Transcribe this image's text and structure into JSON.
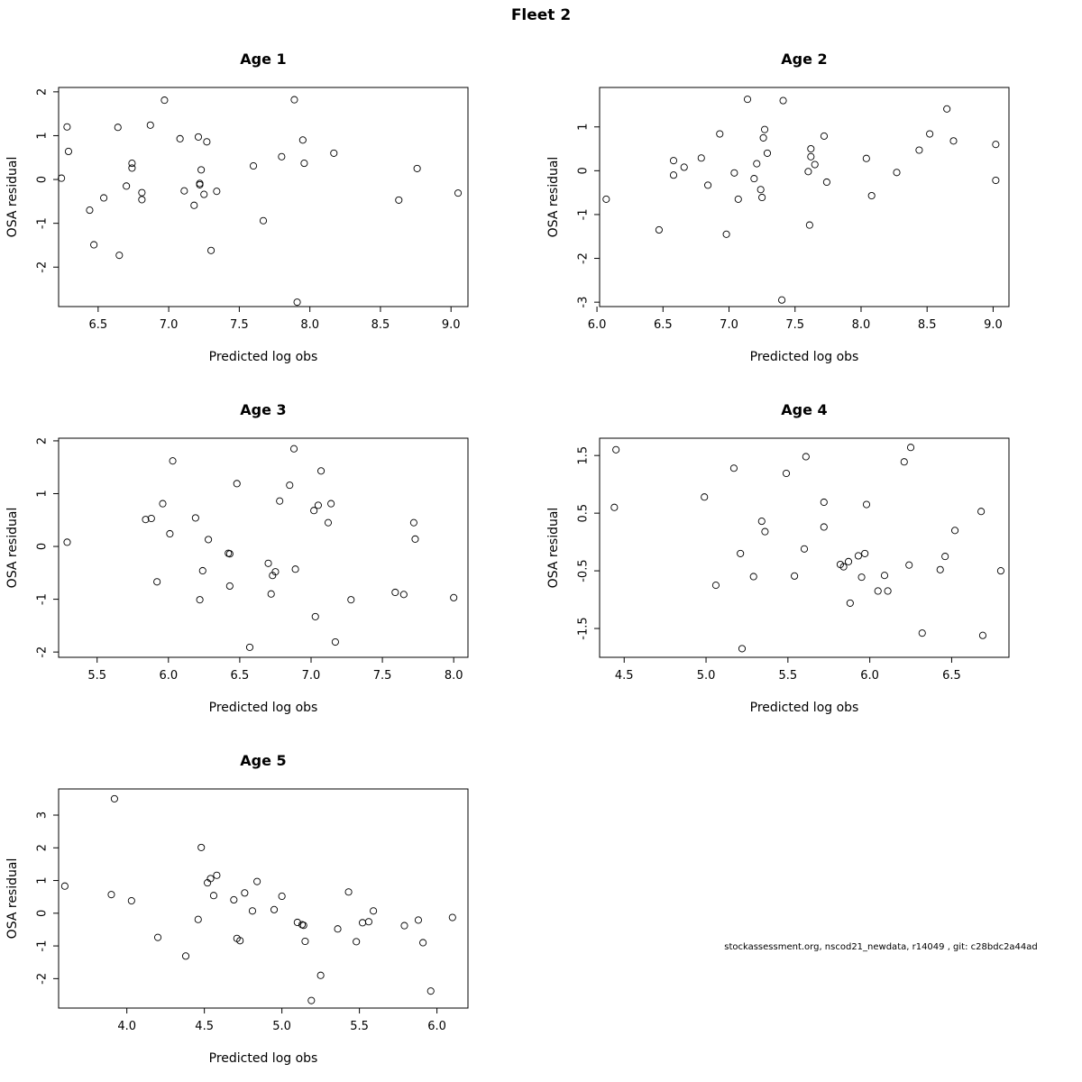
{
  "figure": {
    "title": "Fleet 2",
    "footer": "stockassessment.org, nscod21_newdata, r14049 , git: c28bdc2a44ad"
  },
  "chart_data": [
    {
      "type": "scatter",
      "title": "Age 1",
      "xlabel": "Predicted log obs",
      "ylabel": "OSA residual",
      "xlim": [
        6.22,
        9.12
      ],
      "ylim": [
        -2.9,
        2.1
      ],
      "xticks": [
        6.5,
        7.0,
        7.5,
        8.0,
        8.5,
        9.0
      ],
      "yticks": [
        -2,
        -1,
        0,
        1,
        2
      ],
      "x": [
        6.24,
        6.28,
        6.29,
        6.44,
        6.47,
        6.54,
        6.64,
        6.65,
        6.7,
        6.74,
        6.74,
        6.81,
        6.81,
        6.87,
        6.97,
        7.08,
        7.11,
        7.18,
        7.21,
        7.22,
        7.22,
        7.23,
        7.25,
        7.27,
        7.3,
        7.34,
        7.6,
        7.67,
        7.8,
        7.89,
        7.91,
        7.95,
        7.96,
        8.17,
        8.63,
        8.76,
        9.05
      ],
      "y": [
        0.03,
        1.2,
        0.64,
        -0.7,
        -1.49,
        -0.42,
        1.19,
        -1.73,
        -0.15,
        0.37,
        0.26,
        -0.3,
        -0.46,
        1.24,
        1.81,
        0.93,
        -0.26,
        -0.59,
        0.97,
        -0.09,
        -0.12,
        0.22,
        -0.34,
        0.86,
        -1.62,
        -0.27,
        0.31,
        -0.94,
        0.52,
        1.82,
        -2.8,
        0.9,
        0.37,
        0.6,
        -0.47,
        0.25,
        -0.31
      ]
    },
    {
      "type": "scatter",
      "title": "Age 2",
      "xlabel": "Predicted log obs",
      "ylabel": "OSA residual",
      "xlim": [
        6.02,
        9.12
      ],
      "ylim": [
        -3.1,
        1.9
      ],
      "xticks": [
        6.0,
        6.5,
        7.0,
        7.5,
        8.0,
        8.5,
        9.0
      ],
      "yticks": [
        -3,
        -2,
        -1,
        0,
        1
      ],
      "x": [
        6.07,
        6.47,
        6.58,
        6.58,
        6.66,
        6.79,
        6.84,
        6.93,
        6.98,
        7.04,
        7.07,
        7.14,
        7.19,
        7.21,
        7.24,
        7.25,
        7.26,
        7.27,
        7.29,
        7.4,
        7.41,
        7.6,
        7.61,
        7.62,
        7.62,
        7.65,
        7.72,
        7.74,
        8.04,
        8.08,
        8.27,
        8.44,
        8.52,
        8.65,
        8.7,
        9.02,
        9.02
      ],
      "y": [
        -0.65,
        -1.35,
        0.23,
        -0.1,
        0.08,
        0.29,
        -0.33,
        0.84,
        -1.45,
        -0.05,
        -0.65,
        1.63,
        -0.18,
        0.16,
        -0.43,
        -0.61,
        0.75,
        0.94,
        0.4,
        -2.95,
        1.6,
        -0.02,
        -1.24,
        0.5,
        0.32,
        0.14,
        0.79,
        -0.26,
        0.28,
        -0.57,
        -0.04,
        0.47,
        0.84,
        1.41,
        0.68,
        0.6,
        -0.22
      ]
    },
    {
      "type": "scatter",
      "title": "Age 3",
      "xlabel": "Predicted log obs",
      "ylabel": "OSA residual",
      "xlim": [
        5.23,
        8.1
      ],
      "ylim": [
        -2.1,
        2.05
      ],
      "xticks": [
        5.5,
        6.0,
        6.5,
        7.0,
        7.5,
        8.0
      ],
      "yticks": [
        -2,
        -1,
        0,
        1,
        2
      ],
      "x": [
        5.29,
        5.84,
        5.88,
        5.92,
        5.96,
        6.01,
        6.03,
        6.19,
        6.22,
        6.24,
        6.28,
        6.42,
        6.43,
        6.43,
        6.48,
        6.57,
        6.7,
        6.72,
        6.73,
        6.75,
        6.78,
        6.85,
        6.88,
        6.89,
        7.02,
        7.03,
        7.05,
        7.07,
        7.12,
        7.14,
        7.17,
        7.28,
        7.59,
        7.65,
        7.72,
        7.73,
        8.0
      ],
      "y": [
        0.08,
        0.51,
        0.53,
        -0.67,
        0.81,
        0.24,
        1.62,
        0.54,
        -1.01,
        -0.46,
        0.13,
        -0.13,
        -0.14,
        -0.75,
        1.19,
        -1.91,
        -0.32,
        -0.9,
        -0.55,
        -0.48,
        0.86,
        1.16,
        1.85,
        -0.43,
        0.68,
        -1.33,
        0.78,
        1.43,
        0.45,
        0.81,
        -1.81,
        -1.01,
        -0.87,
        -0.91,
        0.45,
        0.14,
        -0.97
      ]
    },
    {
      "type": "scatter",
      "title": "Age 4",
      "xlabel": "Predicted log obs",
      "ylabel": "OSA residual",
      "xlim": [
        4.35,
        6.85
      ],
      "ylim": [
        -2.0,
        1.8
      ],
      "xticks": [
        4.5,
        5.0,
        5.5,
        6.0,
        6.5
      ],
      "yticks": [
        -1.5,
        -0.5,
        0.5,
        1.5
      ],
      "x": [
        4.44,
        4.45,
        4.99,
        5.06,
        5.17,
        5.21,
        5.22,
        5.29,
        5.34,
        5.36,
        5.49,
        5.54,
        5.6,
        5.61,
        5.72,
        5.72,
        5.82,
        5.84,
        5.87,
        5.88,
        5.93,
        5.95,
        5.97,
        5.98,
        6.05,
        6.09,
        6.11,
        6.21,
        6.24,
        6.25,
        6.32,
        6.43,
        6.46,
        6.52,
        6.68,
        6.69,
        6.8
      ],
      "y": [
        0.6,
        1.6,
        0.78,
        -0.75,
        1.28,
        -0.2,
        -1.85,
        -0.6,
        0.36,
        0.18,
        1.19,
        -0.59,
        -0.12,
        1.48,
        0.69,
        0.26,
        -0.39,
        -0.43,
        -0.34,
        -1.06,
        -0.24,
        -0.61,
        -0.2,
        0.65,
        -0.85,
        -0.58,
        -0.85,
        1.39,
        -0.4,
        1.64,
        -1.58,
        -0.48,
        -0.25,
        0.2,
        0.53,
        -1.62,
        -0.5
      ]
    },
    {
      "type": "scatter",
      "title": "Age 5",
      "xlabel": "Predicted log obs",
      "ylabel": "OSA residual",
      "xlim": [
        3.56,
        6.2
      ],
      "ylim": [
        -2.9,
        3.8
      ],
      "xticks": [
        4.0,
        4.5,
        5.0,
        5.5,
        6.0
      ],
      "yticks": [
        -2,
        -1,
        0,
        1,
        2,
        3
      ],
      "x": [
        3.6,
        3.9,
        3.92,
        4.03,
        4.2,
        4.38,
        4.46,
        4.48,
        4.52,
        4.54,
        4.56,
        4.58,
        4.69,
        4.71,
        4.73,
        4.76,
        4.81,
        4.84,
        4.95,
        5.0,
        5.1,
        5.13,
        5.14,
        5.15,
        5.19,
        5.25,
        5.36,
        5.43,
        5.48,
        5.52,
        5.56,
        5.59,
        5.79,
        5.88,
        5.91,
        5.96,
        6.1
      ],
      "y": [
        0.83,
        0.57,
        3.5,
        0.38,
        -0.74,
        -1.31,
        -0.19,
        2.01,
        0.93,
        1.06,
        0.54,
        1.16,
        0.41,
        -0.77,
        -0.84,
        0.62,
        0.07,
        0.97,
        0.11,
        0.52,
        -0.28,
        -0.35,
        -0.37,
        -0.86,
        -2.67,
        -1.9,
        -0.48,
        0.65,
        -0.87,
        -0.29,
        -0.26,
        0.07,
        -0.38,
        -0.21,
        -0.9,
        -2.38,
        -0.13
      ]
    }
  ]
}
